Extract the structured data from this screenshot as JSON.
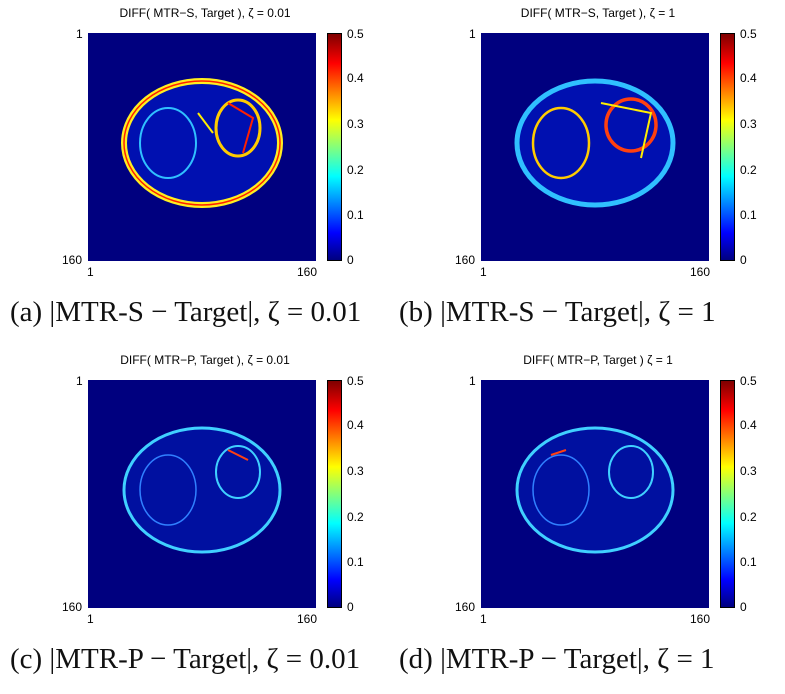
{
  "panels": [
    {
      "title": "DIFF( MTR−S, Target ), ζ = 0.01",
      "caption": "(a) |MTR-S − Target|, ζ = 0.01"
    },
    {
      "title": "DIFF( MTR−S, Target ), ζ = 1",
      "caption": "(b) |MTR-S − Target|, ζ = 1"
    },
    {
      "title": "DIFF( MTR−P, Target ), ζ = 0.01",
      "caption": "(c) |MTR-P − Target|, ζ = 0.01"
    },
    {
      "title": "DIFF( MTR−P, Target ) ζ = 1",
      "caption": "(d) |MTR-P − Target|, ζ = 1"
    }
  ],
  "axis": {
    "y_top": "1",
    "y_bottom": "160",
    "x_left": "1",
    "x_right": "160"
  },
  "colorbar": {
    "ticks": [
      "0.5",
      "0.4",
      "0.3",
      "0.2",
      "0.1",
      "0"
    ]
  },
  "colors": {
    "background": "#00007f",
    "outline_s": "#ffff40",
    "outline_p": "#40d0ff",
    "hot": "#ff3010"
  }
}
